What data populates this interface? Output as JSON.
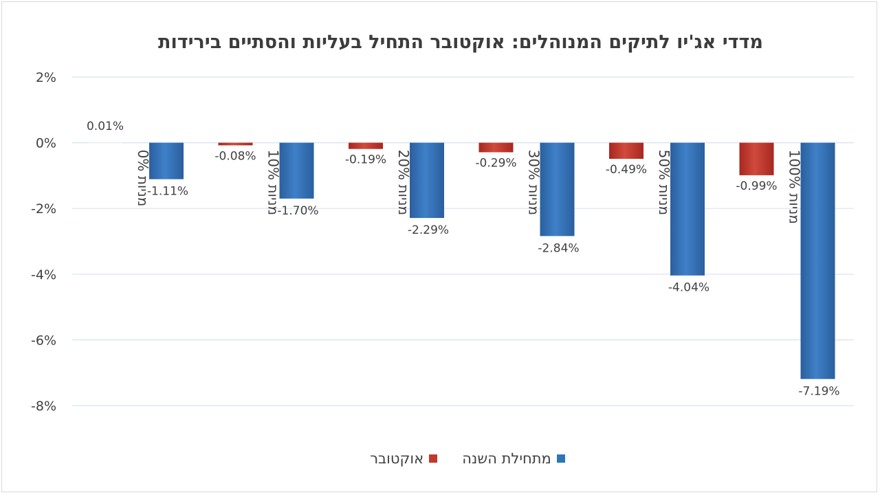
{
  "chart_data": {
    "type": "bar",
    "title": "מדדי אג'יו לתיקים המנוהלים: אוקטובר התחיל בעליות והסתיים בירידות",
    "categories": [
      "0% מניות",
      "10% מניות",
      "20% מניות",
      "30% מניות",
      "50% מניות",
      "100% מניות"
    ],
    "series": [
      {
        "name": "אוקטובר",
        "color": "#c0392b",
        "values": [
          0.01,
          -0.08,
          -0.19,
          -0.29,
          -0.49,
          -0.99
        ],
        "labels": [
          "0.01%",
          "-0.08%",
          "-0.19%",
          "-0.29%",
          "-0.49%",
          "-0.99%"
        ]
      },
      {
        "name": "מתחילת השנה",
        "color": "#2e75b6",
        "values": [
          -1.11,
          -1.7,
          -2.29,
          -2.84,
          -4.04,
          -7.19
        ],
        "labels": [
          "-1.11%",
          "-1.70%",
          "-2.29%",
          "-2.84%",
          "-4.04%",
          "-7.19%"
        ]
      }
    ],
    "yticks": [
      2,
      0,
      -2,
      -4,
      -6,
      -8
    ],
    "ytick_labels": [
      "2%",
      "0%",
      "-2%",
      "-4%",
      "-6%",
      "-8%"
    ],
    "ylim": [
      -8,
      2
    ],
    "xlabel": "",
    "ylabel": "",
    "legend_position": "bottom",
    "grid": true
  }
}
